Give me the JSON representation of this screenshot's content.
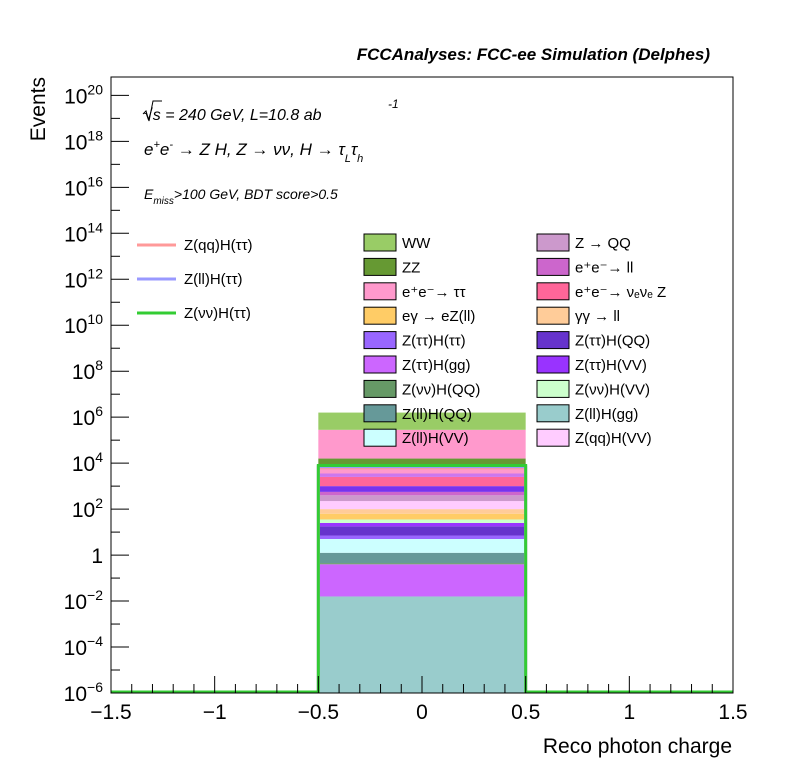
{
  "chart_data": {
    "type": "bar",
    "header": "FCCAnalyses: FCC-ee Simulation (Delphes)",
    "xlabel": "Reco photon charge",
    "ylabel": "Events",
    "xlim": [
      -1.5,
      1.5
    ],
    "ylog": true,
    "ylim_exp": [
      -6,
      20.8
    ],
    "x_ticks": [
      {
        "v": -1.5,
        "label": "−1.5"
      },
      {
        "v": -1,
        "label": "−1"
      },
      {
        "v": -0.5,
        "label": "−0.5"
      },
      {
        "v": 0,
        "label": "0"
      },
      {
        "v": 0.5,
        "label": "0.5"
      },
      {
        "v": 1,
        "label": "1"
      },
      {
        "v": 1.5,
        "label": "1.5"
      }
    ],
    "y_ticks": [
      {
        "e": -6,
        "base": "10",
        "sup": "−6"
      },
      {
        "e": -4,
        "base": "10",
        "sup": "−4"
      },
      {
        "e": -2,
        "base": "10",
        "sup": "−2"
      },
      {
        "e": 0,
        "base": "1",
        "sup": ""
      },
      {
        "e": 2,
        "base": "10",
        "sup": "2"
      },
      {
        "e": 4,
        "base": "10",
        "sup": "4"
      },
      {
        "e": 6,
        "base": "10",
        "sup": "6"
      },
      {
        "e": 8,
        "base": "10",
        "sup": "8"
      },
      {
        "e": 10,
        "base": "10",
        "sup": "10"
      },
      {
        "e": 12,
        "base": "10",
        "sup": "12"
      },
      {
        "e": 14,
        "base": "10",
        "sup": "14"
      },
      {
        "e": 16,
        "base": "10",
        "sup": "16"
      },
      {
        "e": 18,
        "base": "10",
        "sup": "18"
      },
      {
        "e": 20,
        "base": "10",
        "sup": "20"
      }
    ],
    "annotations": {
      "energy_line": "√s = 240 GeV, L=10.8 ab",
      "energy_sup": "-1",
      "process_line": "e⁺e⁻ → Z H, Z → νν, H → τ_L τ_h",
      "cut_line": "E_miss>100 GeV, BDT score>0.5"
    },
    "bin": {
      "x0": -0.5,
      "x1": 0.5
    },
    "stack": [
      {
        "name": "Z(ll)H(gg)",
        "color": "#99cccc",
        "top_exp": -1.8
      },
      {
        "name": "Z(ττ)H(gg)",
        "color": "#cc66ff",
        "top_exp": -0.4
      },
      {
        "name": "Z(νν)H(QQ)",
        "color": "#669966",
        "top_exp": -0.35
      },
      {
        "name": "Z(ll)H(QQ)",
        "color": "#669999",
        "top_exp": 0.1
      },
      {
        "name": "Z(ll)H(VV)",
        "color": "#ccffff",
        "top_exp": 0.7
      },
      {
        "name": "Z(ττ)H(ττ)",
        "color": "#9966ff",
        "top_exp": 0.85
      },
      {
        "name": "Z(ττ)H(QQ)",
        "color": "#6633cc",
        "top_exp": 1.25
      },
      {
        "name": "Z(ττ)H(VV)",
        "color": "#9933ff",
        "top_exp": 1.4
      },
      {
        "name": "Z(νν)H(VV)",
        "color": "#ccffcc",
        "top_exp": 1.55
      },
      {
        "name": "eγ → eZ(ll)",
        "color": "#ffcc66",
        "top_exp": 1.8
      },
      {
        "name": "γγ → ll",
        "color": "#ffcc99",
        "top_exp": 2.0
      },
      {
        "name": "Z(qq)H(VV)",
        "color": "#ffccff",
        "top_exp": 2.35
      },
      {
        "name": "Z → QQ",
        "color": "#cc99cc",
        "top_exp": 2.6
      },
      {
        "name": "e⁺e⁻→ ll",
        "color": "#cc66cc",
        "top_exp": 2.75
      },
      {
        "name": "Z(ττ)H(VV) b",
        "color": "#7733ee",
        "top_exp": 3.0
      },
      {
        "name": "e⁺e⁻→ ν_eν_e Z",
        "color": "#ff6699",
        "top_exp": 3.4
      },
      {
        "name": "Z(ττ)H(gg) b",
        "color": "#cc77ee",
        "top_exp": 3.55
      },
      {
        "name": "e⁺e⁻→ ττ",
        "color": "#ff99cc",
        "top_exp": 3.9
      },
      {
        "name": "ZZ",
        "color": "#669933",
        "top_exp": 4.2
      },
      {
        "name": "e⁺e⁻→ ττ b",
        "color": "#ff99cc",
        "top_exp": 5.45
      },
      {
        "name": "WW",
        "color": "#99cc66",
        "top_exp": 6.2
      }
    ],
    "signal_lines": [
      {
        "name": "Z(qq)H(ττ)",
        "color": "#ff9999",
        "value_exp": 3.8
      },
      {
        "name": "Z(ll)H(ττ)",
        "color": "#9999ff",
        "value_exp": 3.85
      },
      {
        "name": "Z(νν)H(ττ)",
        "color": "#33cc33",
        "value_exp": 3.9
      }
    ],
    "legend_signals": [
      {
        "label": "Z(qq)H(ττ)",
        "color": "#ff9999"
      },
      {
        "label": "Z(ll)H(ττ)",
        "color": "#9999ff"
      },
      {
        "label": "Z(νν)H(ττ)",
        "color": "#33cc33"
      }
    ],
    "legend_backgrounds": [
      {
        "label": "WW",
        "color": "#99cc66"
      },
      {
        "label": "Z → QQ",
        "color": "#cc99cc"
      },
      {
        "label": "ZZ",
        "color": "#669933"
      },
      {
        "label": "e⁺e⁻→ ll",
        "color": "#cc66cc"
      },
      {
        "label": "e⁺e⁻→ ττ",
        "color": "#ff99cc"
      },
      {
        "label": "e⁺e⁻→ νₑνₑ Z",
        "color": "#ff6699"
      },
      {
        "label": "eγ → eZ(ll)",
        "color": "#ffcc66"
      },
      {
        "label": "γγ → ll",
        "color": "#ffcc99"
      },
      {
        "label": "Z(ττ)H(ττ)",
        "color": "#9966ff"
      },
      {
        "label": "Z(ττ)H(QQ)",
        "color": "#6633cc"
      },
      {
        "label": "Z(ττ)H(gg)",
        "color": "#cc66ff"
      },
      {
        "label": "Z(ττ)H(VV)",
        "color": "#9933ff"
      },
      {
        "label": "Z(νν)H(QQ)",
        "color": "#669966"
      },
      {
        "label": "Z(νν)H(VV)",
        "color": "#ccffcc"
      },
      {
        "label": "Z(ll)H(QQ)",
        "color": "#669999"
      },
      {
        "label": "Z(ll)H(gg)",
        "color": "#99cccc"
      },
      {
        "label": "Z(ll)H(VV)",
        "color": "#ccffff"
      },
      {
        "label": "Z(qq)H(VV)",
        "color": "#ffccff"
      }
    ]
  }
}
